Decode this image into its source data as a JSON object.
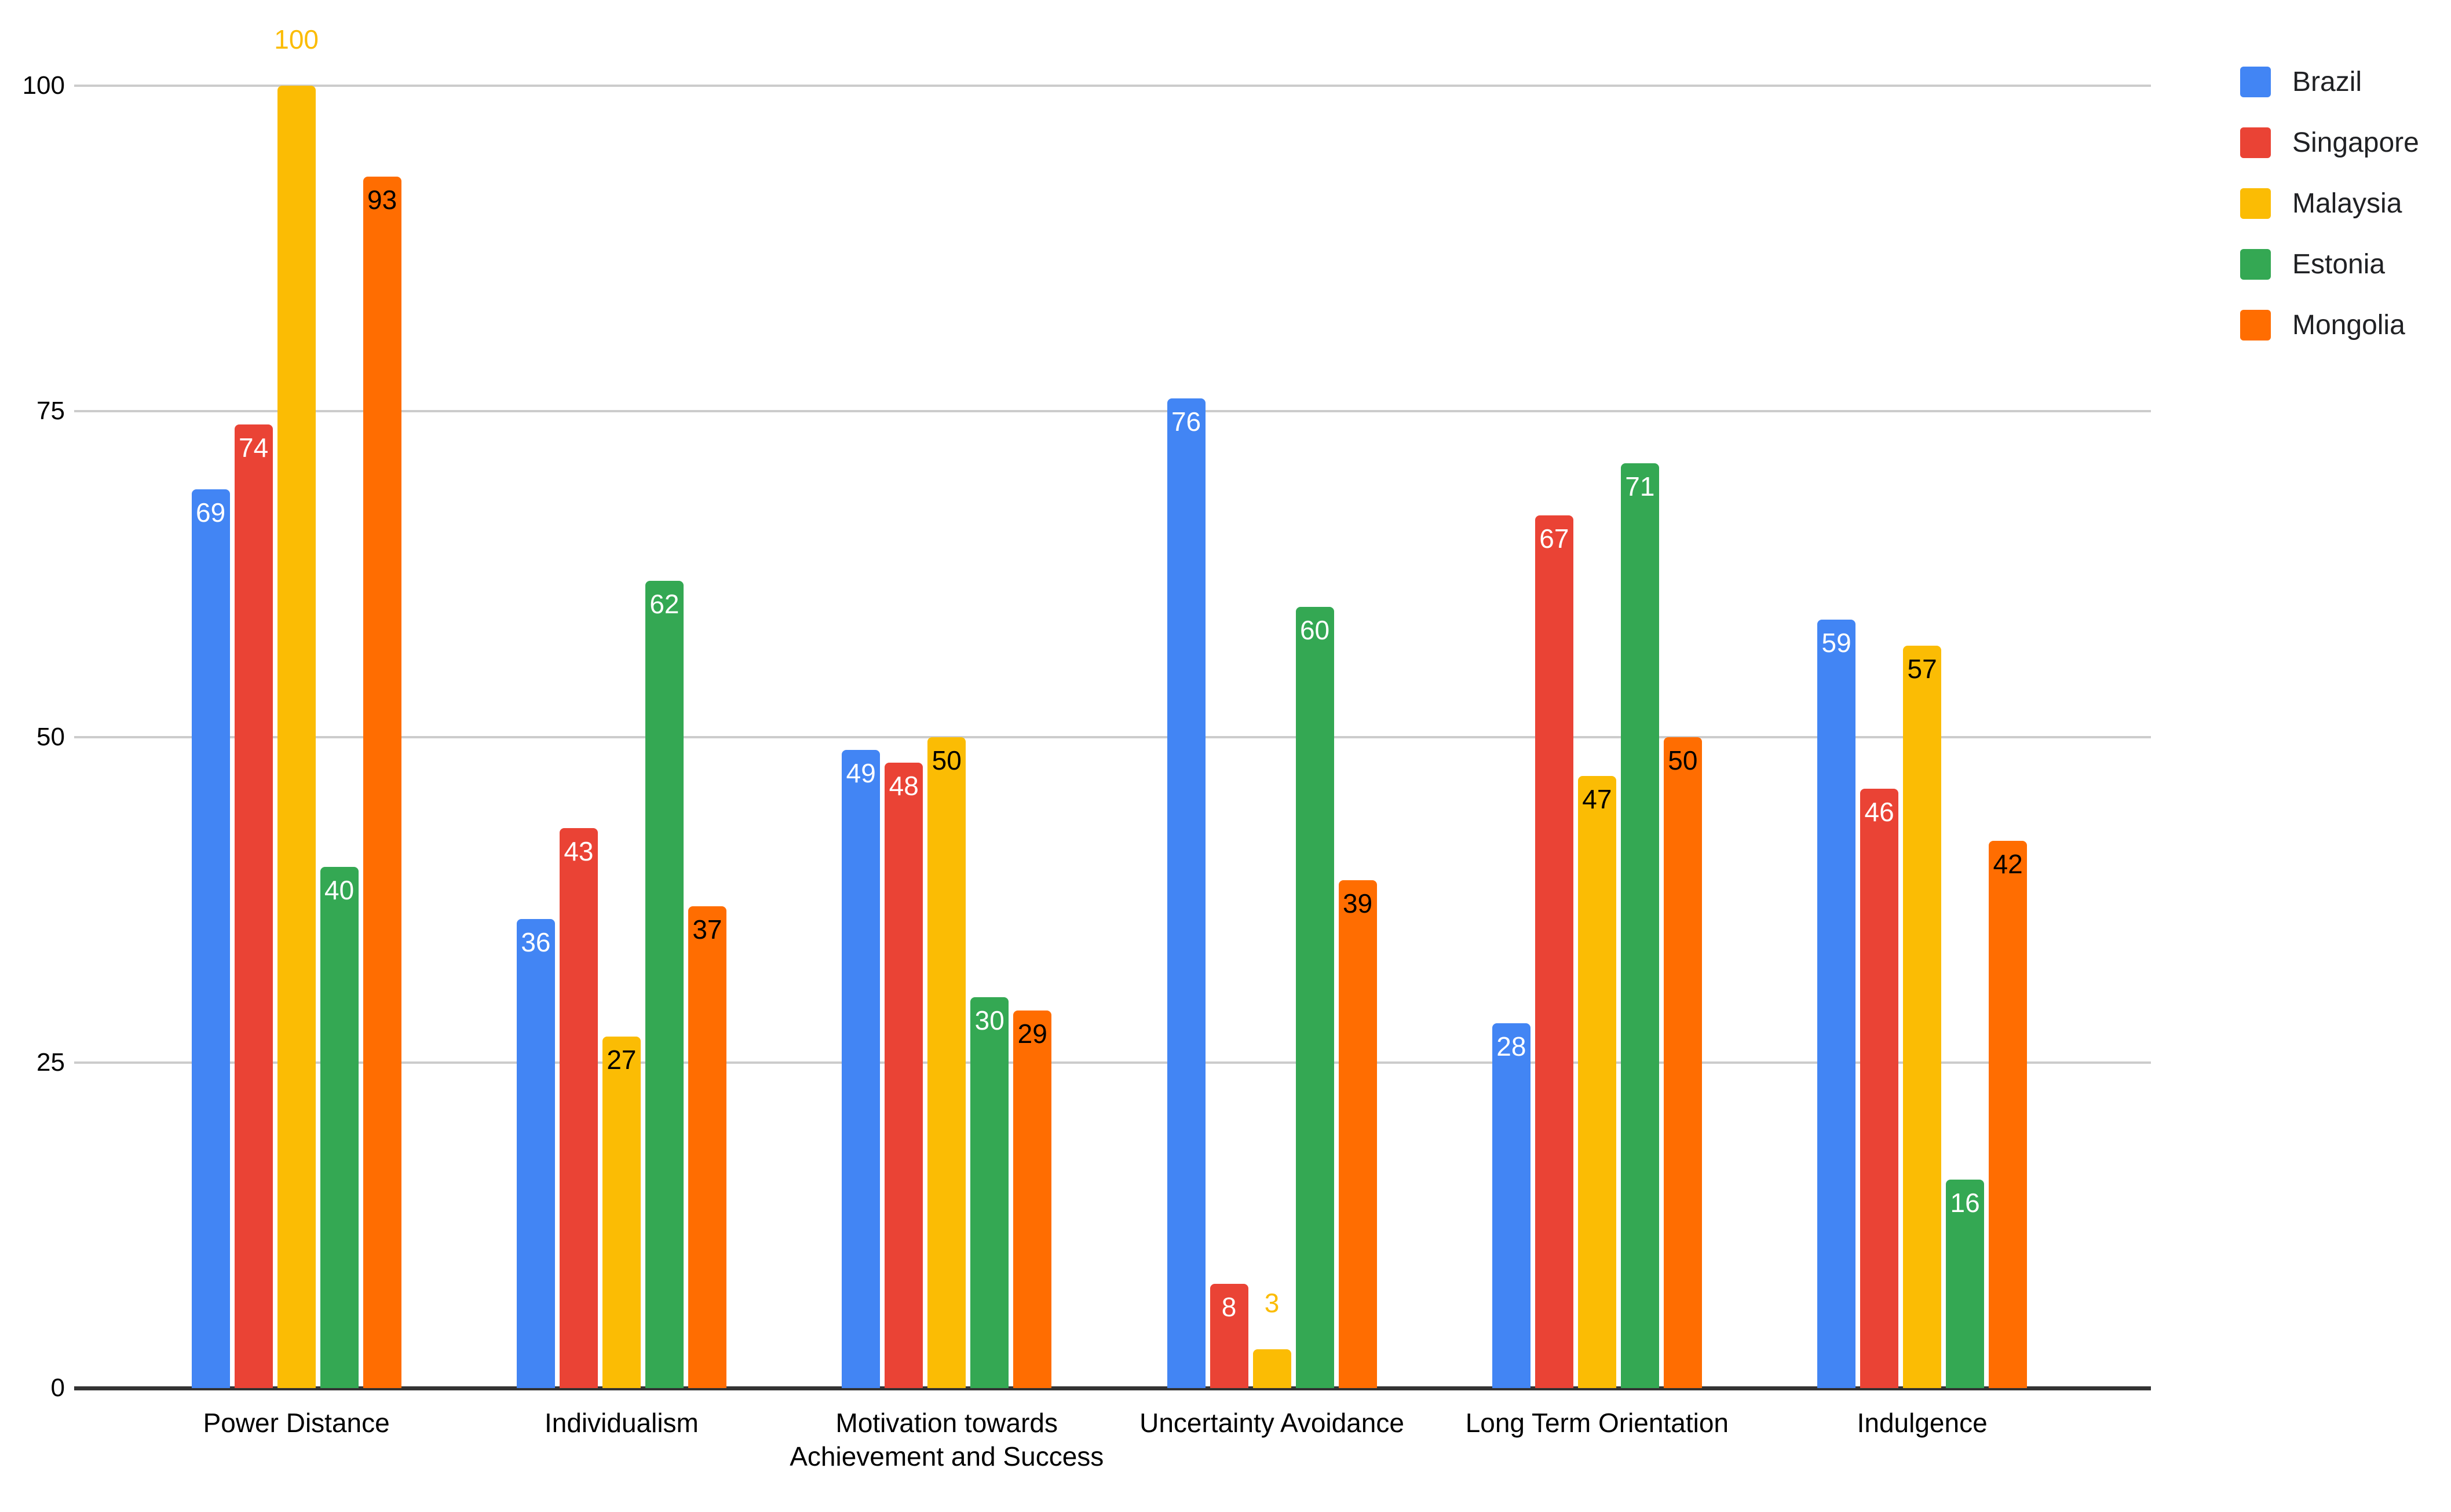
{
  "chart_data": {
    "type": "bar",
    "title": "",
    "xlabel": "",
    "ylabel": "",
    "categories": [
      "Power Distance",
      "Individualism",
      "Motivation towards Achievement and Success",
      "Uncertainty Avoidance",
      "Long Term Orientation",
      "Indulgence"
    ],
    "series": [
      {
        "name": "Brazil",
        "color": "#4285F4",
        "label_color": "#ffffff",
        "values": [
          69,
          36,
          49,
          76,
          28,
          59
        ]
      },
      {
        "name": "Singapore",
        "color": "#EA4335",
        "label_color": "#ffffff",
        "values": [
          74,
          43,
          48,
          8,
          67,
          46
        ]
      },
      {
        "name": "Malaysia",
        "color": "#FBBC04",
        "label_color": "#000000",
        "outside_label_color": "#FBBC04",
        "values": [
          100,
          27,
          50,
          3,
          47,
          57
        ],
        "label_positions": [
          "above",
          "inside",
          "inside",
          "above",
          "inside",
          "inside"
        ]
      },
      {
        "name": "Estonia",
        "color": "#34A853",
        "label_color": "#ffffff",
        "values": [
          40,
          62,
          30,
          60,
          71,
          16
        ]
      },
      {
        "name": "Mongolia",
        "color": "#FF6D01",
        "label_color": "#000000",
        "values": [
          93,
          37,
          29,
          39,
          50,
          42
        ]
      }
    ],
    "ylim": [
      0,
      100
    ],
    "yticks": [
      0,
      25,
      50,
      75,
      100
    ],
    "grid": true,
    "legend_position": "right",
    "gridline_color": "#cccccc",
    "baseline_color": "#333333",
    "axis_text_color": "#000000",
    "legend_text_color": "#202124",
    "background_color": "#ffffff"
  }
}
